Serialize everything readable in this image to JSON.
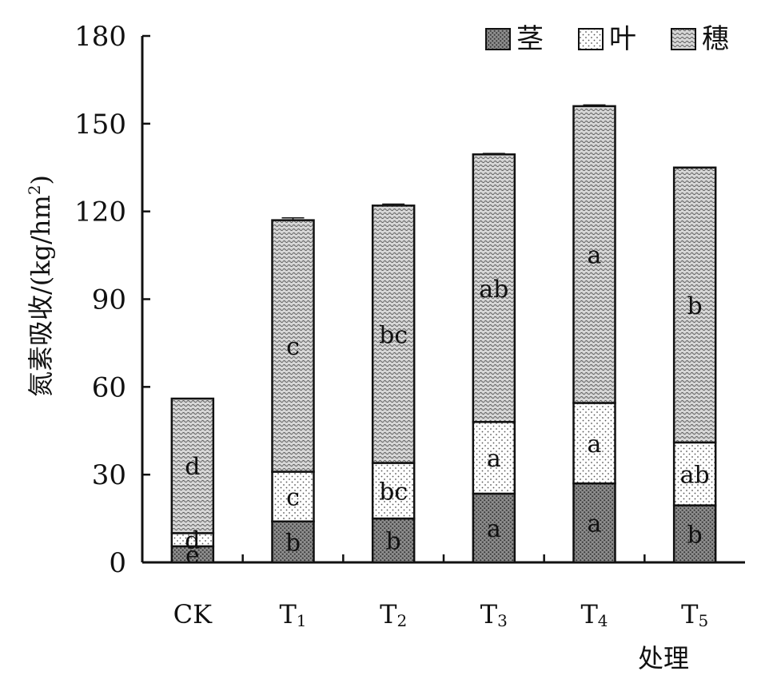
{
  "chart_data": {
    "type": "bar",
    "stacked": true,
    "categories": [
      {
        "main": "CK",
        "sub": ""
      },
      {
        "main": "T",
        "sub": "1"
      },
      {
        "main": "T",
        "sub": "2"
      },
      {
        "main": "T",
        "sub": "3"
      },
      {
        "main": "T",
        "sub": "4"
      },
      {
        "main": "T",
        "sub": "5"
      }
    ],
    "series": [
      {
        "name": "茎",
        "pattern": "dark-dots",
        "values": [
          5.5,
          14,
          15,
          23.5,
          27,
          19.5
        ],
        "labels": [
          "e",
          "b",
          "b",
          "a",
          "a",
          "b"
        ]
      },
      {
        "name": "叶",
        "pattern": "light-dots",
        "values": [
          4.5,
          17,
          19,
          24.5,
          27.5,
          21.5
        ],
        "labels": [
          "d",
          "c",
          "bc",
          "a",
          "a",
          "ab"
        ]
      },
      {
        "name": "穗",
        "pattern": "wave",
        "values": [
          46,
          86,
          88,
          91.5,
          101.5,
          94
        ],
        "labels": [
          "d",
          "c",
          "bc",
          "ab",
          "a",
          "b"
        ]
      }
    ],
    "totals_error": [
      0,
      0.8,
      0.5,
      0.3,
      0.4,
      0
    ],
    "ylabel": "氮素吸收/(kg/hm",
    "ylabel_sup": "2",
    "ylabel_close": ")",
    "xlabel": "处理",
    "ylim": [
      0,
      180
    ],
    "yticks": [
      0,
      30,
      60,
      90,
      120,
      150,
      180
    ],
    "legend_position": "top-right",
    "grid": false
  }
}
